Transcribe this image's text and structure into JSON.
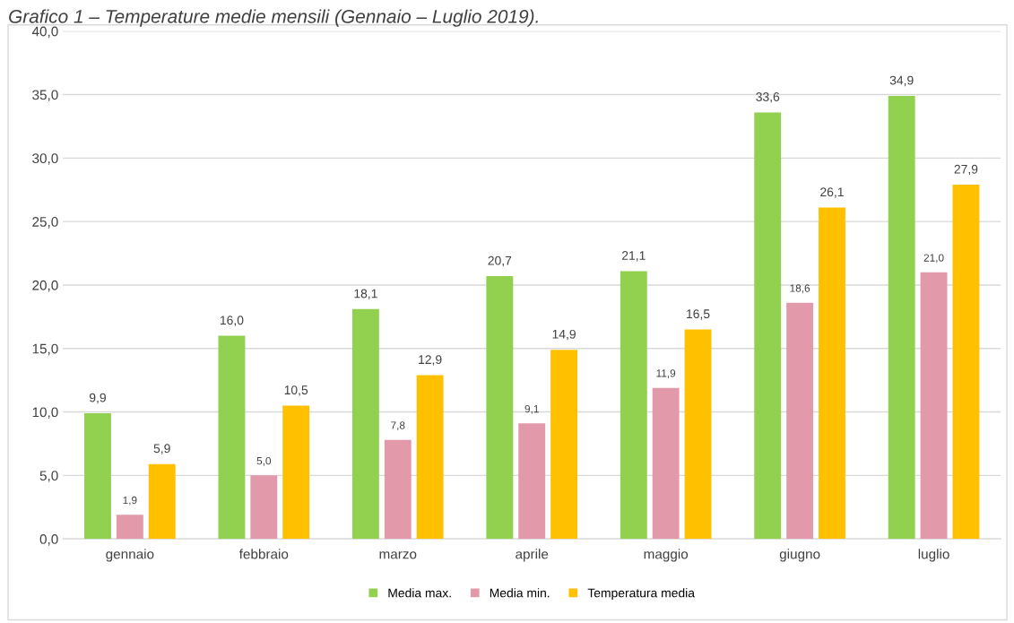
{
  "chart_data": {
    "type": "bar",
    "title": "Grafico 1 – Temperature medie mensili (Gennaio – Luglio 2019).",
    "categories": [
      "gennaio",
      "febbraio",
      "marzo",
      "aprile",
      "maggio",
      "giugno",
      "luglio"
    ],
    "series": [
      {
        "name": "Media max.",
        "color": "#92d050",
        "values": [
          9.9,
          16.0,
          18.1,
          20.7,
          21.1,
          33.6,
          34.9
        ],
        "value_labels": [
          "9,9",
          "16,0",
          "18,1",
          "20,7",
          "21,1",
          "33,6",
          "34,9"
        ]
      },
      {
        "name": "Media min.",
        "color": "#e29aaa",
        "values": [
          1.9,
          5.0,
          7.8,
          9.1,
          11.9,
          18.6,
          21.0
        ],
        "value_labels": [
          "1,9",
          "5,0",
          "7,8",
          "9,1",
          "11,9",
          "18,6",
          "21,0"
        ]
      },
      {
        "name": "Temperatura media",
        "color": "#ffc000",
        "values": [
          5.9,
          10.5,
          12.9,
          14.9,
          16.5,
          26.1,
          27.9
        ],
        "value_labels": [
          "5,9",
          "10,5",
          "12,9",
          "14,9",
          "16,5",
          "26,1",
          "27,9"
        ]
      }
    ],
    "ylim": [
      0,
      40
    ],
    "yticks": [
      {
        "value": 0,
        "label": "0,0"
      },
      {
        "value": 5,
        "label": "5,0"
      },
      {
        "value": 10,
        "label": "10,0"
      },
      {
        "value": 15,
        "label": "15,0"
      },
      {
        "value": 20,
        "label": "20,0"
      },
      {
        "value": 25,
        "label": "25,0"
      },
      {
        "value": 30,
        "label": "30,0"
      },
      {
        "value": 35,
        "label": "35,0"
      },
      {
        "value": 40,
        "label": "40,0"
      }
    ],
    "grid": "y",
    "legend": "bottom"
  }
}
